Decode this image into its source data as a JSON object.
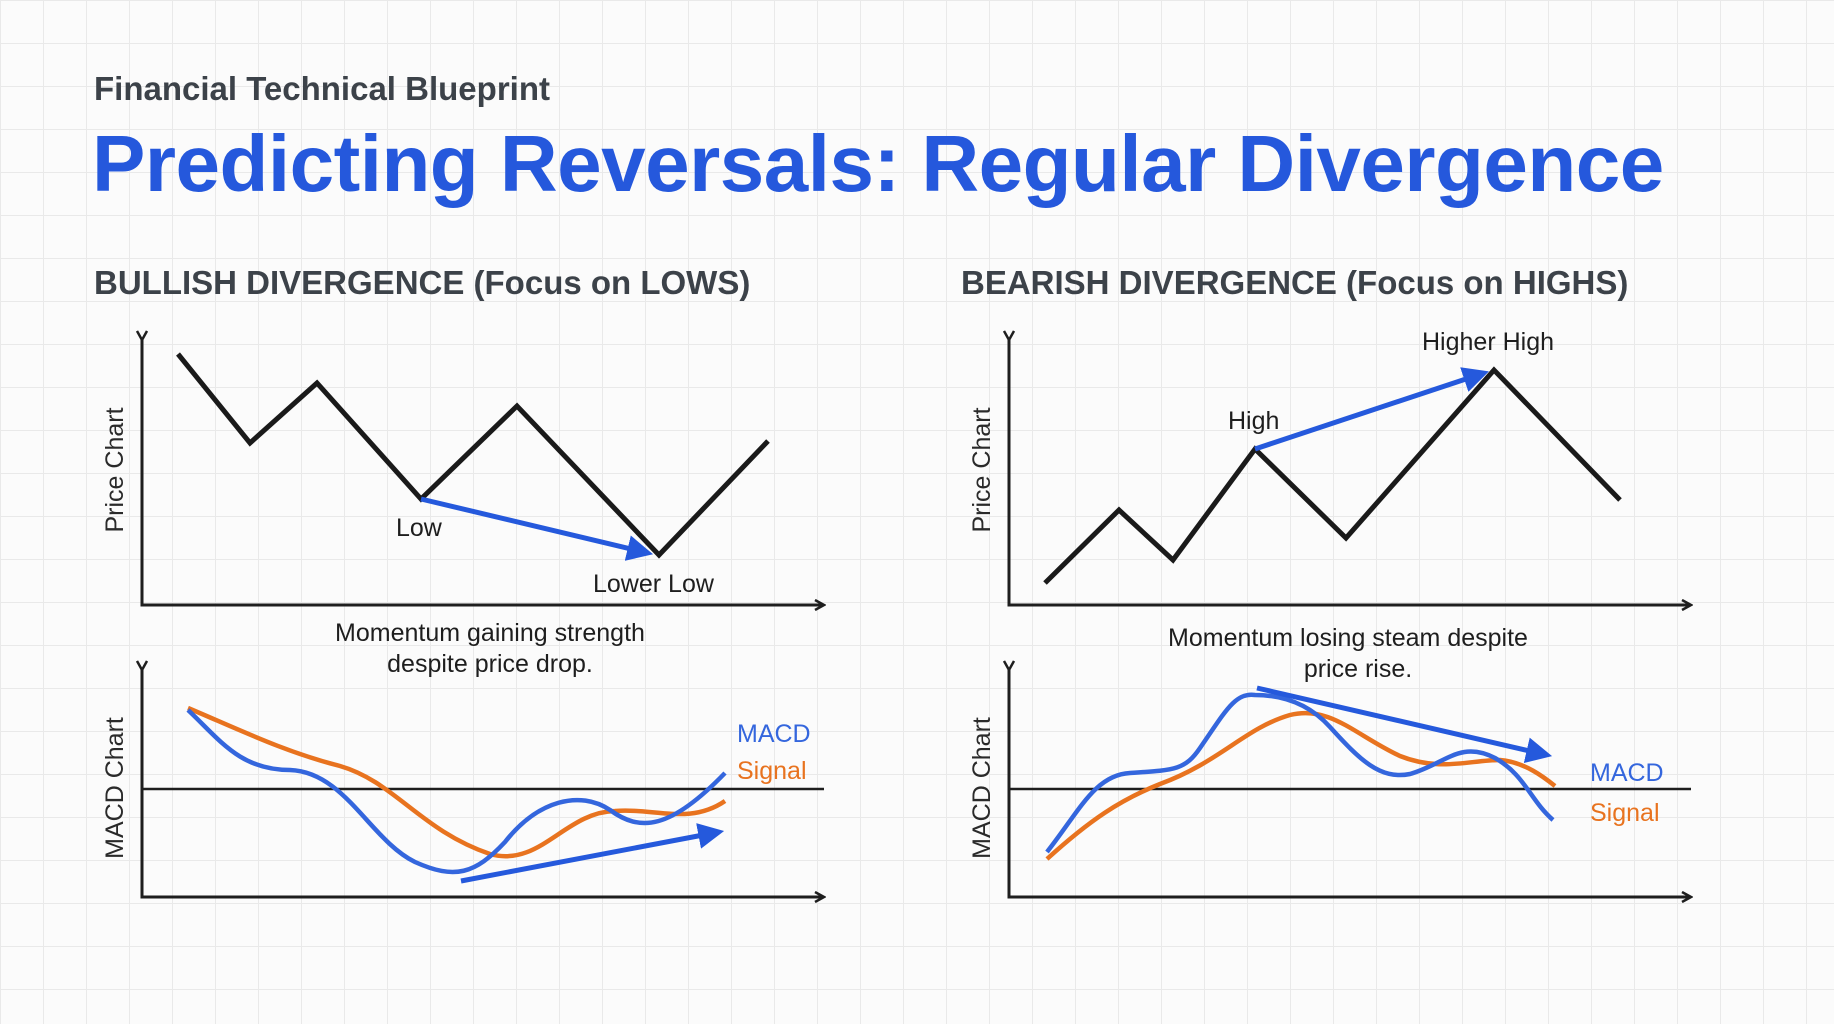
{
  "header": {
    "kicker": "Financial Technical Blueprint",
    "title": "Predicting Reversals: Regular Divergence"
  },
  "colors": {
    "title": "#2558dc",
    "price_line": "#1a1a1a",
    "macd": "#3466dd",
    "signal": "#e8731f",
    "divergence_arrow": "#2559dc"
  },
  "bullish": {
    "heading": "BULLISH DIVERGENCE (Focus on LOWS)",
    "price_axis_label": "Price Chart",
    "macd_axis_label": "MACD Chart",
    "low_label": "Low",
    "lower_low_label": "Lower Low",
    "caption_line1": "Momentum gaining strength",
    "caption_line2": "despite price drop.",
    "macd_legend": "MACD",
    "signal_legend": "Signal"
  },
  "bearish": {
    "heading": "BEARISH DIVERGENCE (Focus on HIGHS)",
    "price_axis_label": "Price Chart",
    "macd_axis_label": "MACD Chart",
    "high_label": "High",
    "higher_high_label": "Higher High",
    "caption_line1": "Momentum losing steam despite",
    "caption_line2": "price rise.",
    "macd_legend": "MACD",
    "signal_legend": "Signal"
  }
}
